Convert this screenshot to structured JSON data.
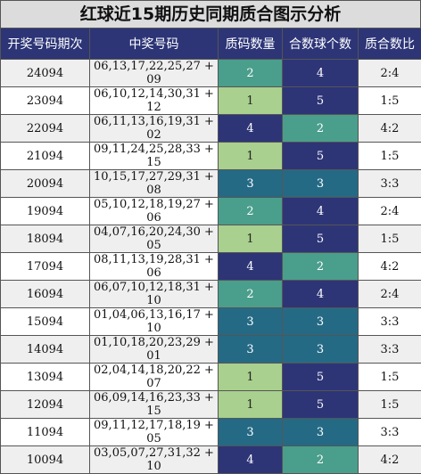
{
  "title": "红球近15期历史同期质合图示分析",
  "headers": [
    "开奖号码期次",
    "中奖号码",
    "质码数量",
    "合数球个数",
    "质合数比"
  ],
  "colors": {
    "1": "#a9d08e",
    "2": "#4a9e8c",
    "3": "#256a85",
    "4": "#2d3577",
    "5": "#2d3577",
    "header_bg": "#2d3577",
    "title_bg": "#dcdcdc"
  },
  "rows": [
    {
      "issue": "24094",
      "numbers": "06,13,17,22,25,27 + 09",
      "prime": "2",
      "composite": "4",
      "ratio": "2:4"
    },
    {
      "issue": "23094",
      "numbers": "06,10,12,14,30,31 + 12",
      "prime": "1",
      "composite": "5",
      "ratio": "1:5"
    },
    {
      "issue": "22094",
      "numbers": "06,11,13,16,19,31 + 02",
      "prime": "4",
      "composite": "2",
      "ratio": "4:2"
    },
    {
      "issue": "21094",
      "numbers": "09,11,24,25,28,33 + 15",
      "prime": "1",
      "composite": "5",
      "ratio": "1:5"
    },
    {
      "issue": "20094",
      "numbers": "10,15,17,27,29,31 + 08",
      "prime": "3",
      "composite": "3",
      "ratio": "3:3"
    },
    {
      "issue": "19094",
      "numbers": "05,10,12,18,19,27 + 06",
      "prime": "2",
      "composite": "4",
      "ratio": "2:4"
    },
    {
      "issue": "18094",
      "numbers": "04,07,16,20,24,30 + 05",
      "prime": "1",
      "composite": "5",
      "ratio": "1:5"
    },
    {
      "issue": "17094",
      "numbers": "08,11,13,19,28,31 + 06",
      "prime": "4",
      "composite": "2",
      "ratio": "4:2"
    },
    {
      "issue": "16094",
      "numbers": "06,07,10,12,18,31 + 10",
      "prime": "2",
      "composite": "4",
      "ratio": "2:4"
    },
    {
      "issue": "15094",
      "numbers": "01,04,06,13,16,17 + 10",
      "prime": "3",
      "composite": "3",
      "ratio": "3:3"
    },
    {
      "issue": "14094",
      "numbers": "01,10,18,20,23,29 + 01",
      "prime": "3",
      "composite": "3",
      "ratio": "3:3"
    },
    {
      "issue": "13094",
      "numbers": "02,04,14,18,20,22 + 07",
      "prime": "1",
      "composite": "5",
      "ratio": "1:5"
    },
    {
      "issue": "12094",
      "numbers": "06,09,14,16,23,33 + 15",
      "prime": "1",
      "composite": "5",
      "ratio": "1:5"
    },
    {
      "issue": "11094",
      "numbers": "09,11,12,17,18,19 + 05",
      "prime": "3",
      "composite": "3",
      "ratio": "3:3"
    },
    {
      "issue": "10094",
      "numbers": "03,05,07,27,31,32 + 10",
      "prime": "4",
      "composite": "2",
      "ratio": "4:2"
    }
  ]
}
